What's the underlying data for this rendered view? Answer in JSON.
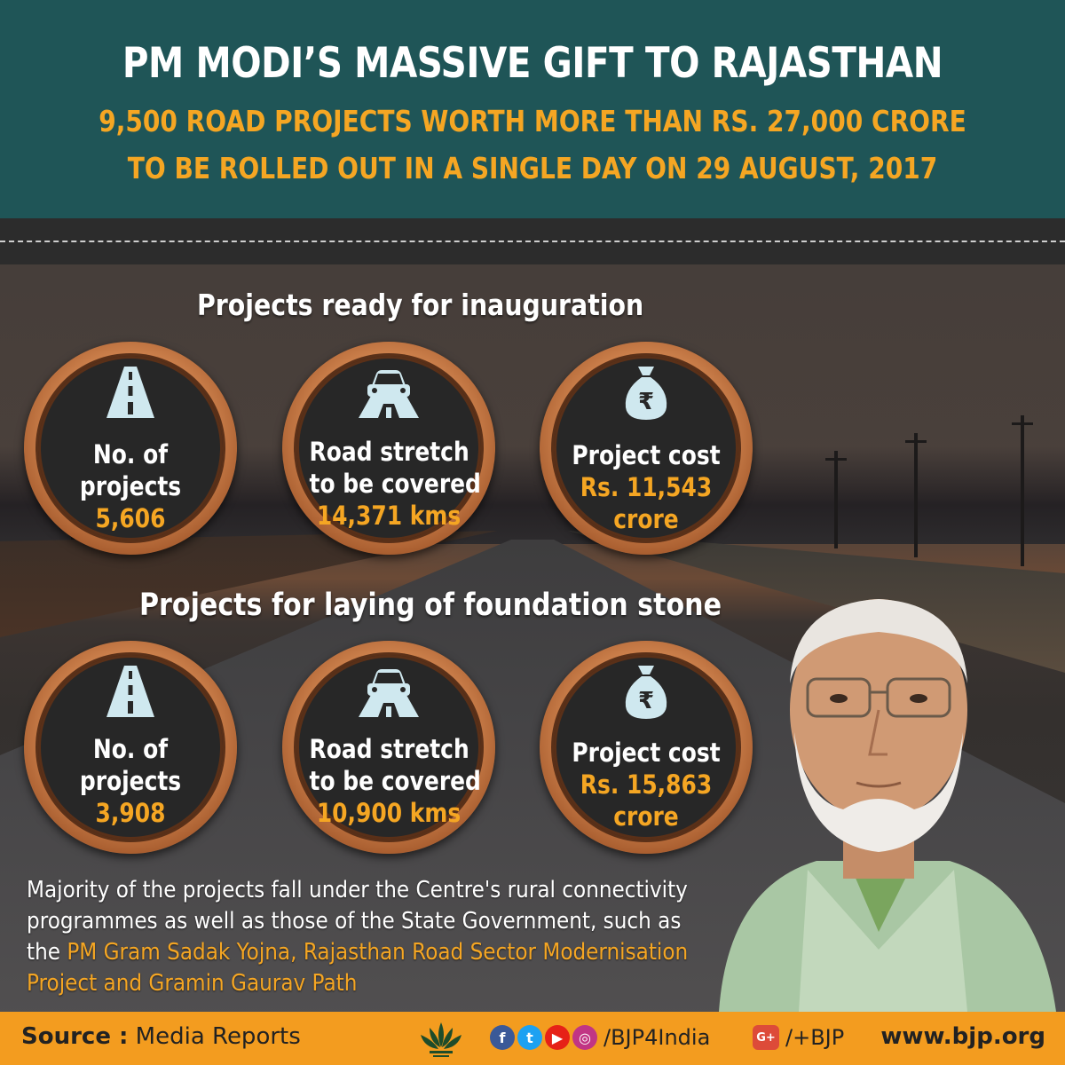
{
  "header": {
    "title": "PM MODI’S MASSIVE GIFT TO RAJASTHAN",
    "subtitle_line1": "9,500 ROAD PROJECTS WORTH MORE THAN RS. 27,000 CRORE",
    "subtitle_line2": "TO BE ROLLED OUT IN A SINGLE DAY ON 29 AUGUST, 2017"
  },
  "sections": [
    {
      "title": "Projects ready for inauguration",
      "stats": [
        {
          "icon": "road-icon",
          "label1": "No. of",
          "label2": "projects",
          "value1": "5,606",
          "value2": ""
        },
        {
          "icon": "car-road-icon",
          "label1": "Road stretch",
          "label2": "to be covered",
          "value1": "14,371 kms",
          "value2": ""
        },
        {
          "icon": "money-bag-icon",
          "label1": "Project cost",
          "label2": "",
          "value1": "Rs. 11,543",
          "value2": "crore"
        }
      ]
    },
    {
      "title": "Projects for laying of foundation stone",
      "stats": [
        {
          "icon": "road-icon",
          "label1": "No. of",
          "label2": "projects",
          "value1": "3,908",
          "value2": ""
        },
        {
          "icon": "car-road-icon",
          "label1": "Road stretch",
          "label2": "to be covered",
          "value1": "10,900 kms",
          "value2": ""
        },
        {
          "icon": "money-bag-icon",
          "label1": "Project cost",
          "label2": "",
          "value1": "Rs. 15,863",
          "value2": "crore"
        }
      ]
    }
  ],
  "paragraph": {
    "line1": "Majority of the projects fall under the Centre's rural connectivity",
    "line2": "programmes as well as those of the State Government, such as",
    "line3_plain": "the ",
    "line3_highlight": "PM Gram Sadak Yojna, Rajasthan Road Sector Modernisation",
    "line4_highlight": "Project and Gramin Gaurav Path"
  },
  "footer": {
    "source_label": "Source :",
    "source_value": " Media Reports",
    "handle1": "/BJP4India",
    "gplus": "G+",
    "handle2": "/+BJP",
    "website": "www.bjp.org"
  },
  "colors": {
    "header_bg": "#1f5557",
    "accent": "#f5a623",
    "footer_bg": "#f39c1f",
    "icon": "#cfe8ef"
  }
}
